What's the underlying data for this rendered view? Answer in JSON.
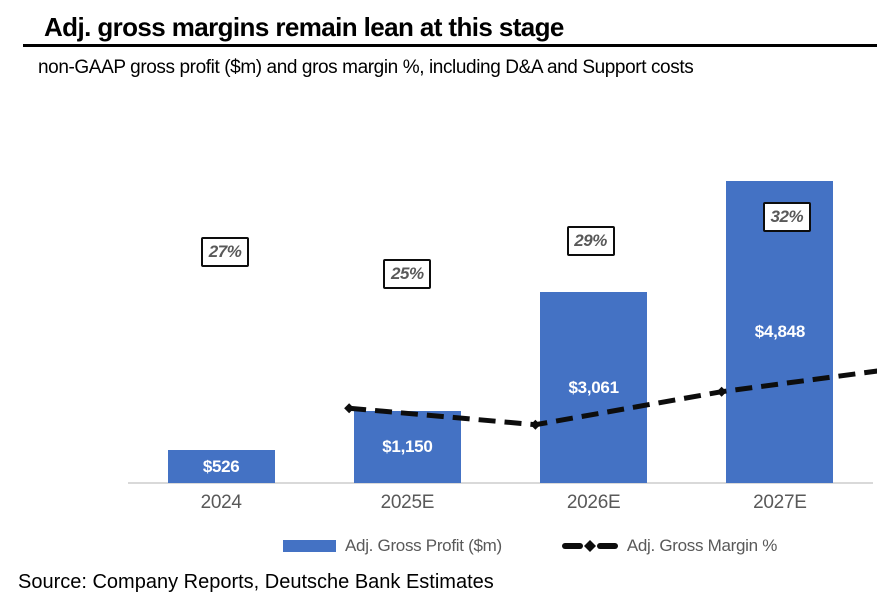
{
  "header": {
    "title": "Adj. gross margins remain lean at this stage",
    "subtitle": "non-GAAP gross profit ($m) and gros margin %, including D&A and Support costs"
  },
  "source_note": "Source: Company Reports, Deutsche Bank Estimates",
  "legend": {
    "profit_label": "Adj. Gross Profit ($m)",
    "margin_label": "Adj. Gross Margin %"
  },
  "colors": {
    "bar": "#4472C4",
    "line": "#0d0d0d",
    "axis": "#d9d9d9",
    "tick_label": "#595959",
    "bar_label": "#ffffff",
    "margin_label_text": "#595959"
  },
  "chart_data": {
    "type": "bar",
    "title": "Adj. gross margins remain lean at this stage",
    "subtitle": "non-GAAP gross profit ($m) and gros margin %, including D&A and Support costs",
    "categories": [
      "2024",
      "2025E",
      "2026E",
      "2027E"
    ],
    "series": [
      {
        "name": "Adj. Gross Profit ($m)",
        "type": "bar",
        "axis": "left",
        "values": [
          526,
          1150,
          3061,
          4848
        ],
        "labels": [
          "$526",
          "$1,150",
          "$3,061",
          "$4,848"
        ],
        "color": "#4472C4",
        "ylim": [
          0,
          5380
        ]
      },
      {
        "name": "Adj. Gross Margin %",
        "type": "line",
        "style": "dashed",
        "marker": "diamond",
        "axis": "right",
        "values": [
          27,
          25,
          29,
          32
        ],
        "labels": [
          "27%",
          "25%",
          "29%",
          "32%"
        ],
        "color": "#0d0d0d",
        "ylim": [
          0,
          40.6
        ]
      }
    ],
    "xlabel": "",
    "ylabel": "",
    "grid": false,
    "legend_position": "bottom"
  }
}
